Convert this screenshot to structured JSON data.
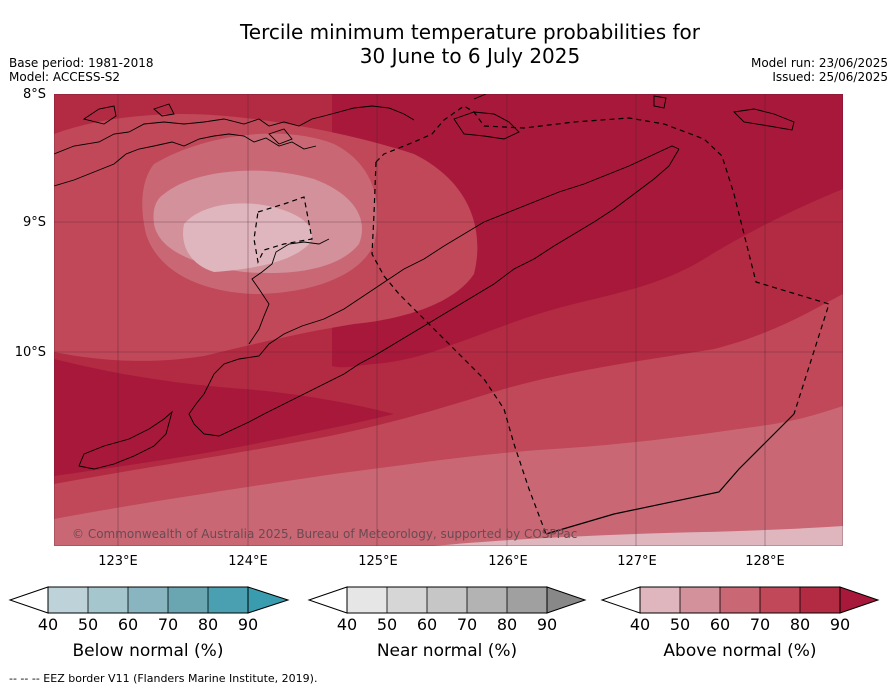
{
  "header": {
    "title_line1": "Tercile minimum temperature probabilities for",
    "title_line2": "30 June to 6 July 2025",
    "base_period": "Base period: 1981-2018",
    "model": "Model: ACCESS-S2",
    "model_run": "Model run: 23/06/2025",
    "issued": "Issued: 25/06/2025"
  },
  "map": {
    "lat_labels": [
      "8°S",
      "9°S",
      "10°S"
    ],
    "lon_labels": [
      "123°E",
      "124°E",
      "125°E",
      "126°E",
      "127°E",
      "128°E"
    ],
    "copyright": "© Commonwealth of Australia 2025, Bureau of Meteorology, supported by COSPPac",
    "colors": {
      "above_40": "#dfb6bd",
      "above_50": "#d3919b",
      "above_60": "#c96874",
      "above_70": "#c04858",
      "above_80": "#b32a43",
      "above_90": "#a8183a"
    }
  },
  "colorbars": [
    {
      "label": "Below normal (%)",
      "ticks": [
        "40",
        "50",
        "60",
        "70",
        "80",
        "90"
      ],
      "colors": [
        "#bdd3d9",
        "#a5c6cc",
        "#88b5bf",
        "#6aa6b2",
        "#4aa0b0",
        "#3a9caf"
      ]
    },
    {
      "label": "Near normal (%)",
      "ticks": [
        "40",
        "50",
        "60",
        "70",
        "80",
        "90"
      ],
      "colors": [
        "#e6e6e6",
        "#d6d6d6",
        "#c6c6c6",
        "#b3b3b3",
        "#a0a0a0",
        "#888888"
      ]
    },
    {
      "label": "Above normal (%)",
      "ticks": [
        "40",
        "50",
        "60",
        "70",
        "80",
        "90"
      ],
      "colors": [
        "#dfb6bd",
        "#d3919b",
        "#c96874",
        "#c04858",
        "#b32a43",
        "#a8183a"
      ]
    }
  ],
  "footer": {
    "legend_line": "--  --  -- EEZ border V11 (Flanders Marine Institute, 2019)."
  }
}
